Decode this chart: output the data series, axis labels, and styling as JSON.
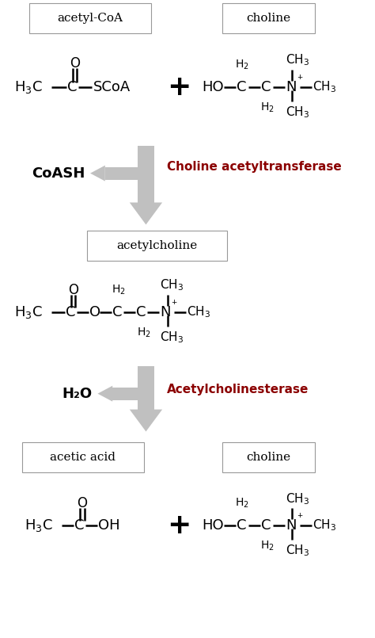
{
  "bg_color": "#ffffff",
  "box_edge_color": "#999999",
  "arrow_color": "#c0c0c0",
  "dark_red": "#8b0000",
  "black": "#000000",
  "fig_width": 4.74,
  "fig_height": 8.05,
  "label_acetylcoa": "acetyl-CoA",
  "label_choline_top": "choline",
  "label_acetylcholine": "acetylcholine",
  "label_acetic_acid": "acetic acid",
  "label_choline_bot": "choline",
  "label_coash": "CoASH",
  "label_enzyme1": "Choline acetyltransferase",
  "label_h2o": "H₂O",
  "label_enzyme2": "Acetylcholinesterase",
  "plus_symbol": "+"
}
